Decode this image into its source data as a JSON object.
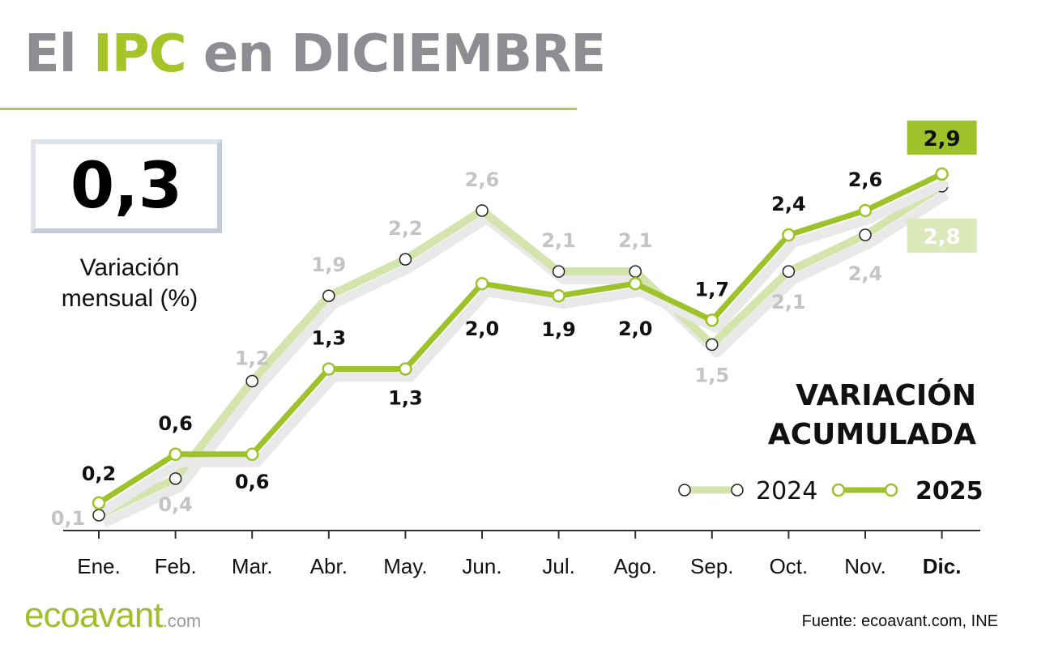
{
  "header": {
    "title_pre": "El ",
    "title_hl": "IPC",
    "title_post": " en DICIEMBRE"
  },
  "monthly": {
    "value": "0,3",
    "label_line1": "Variación",
    "label_line2": "mensual (%)"
  },
  "chart_data": {
    "type": "line",
    "title": "VARIACIÓN ACUMULADA",
    "categories": [
      "Ene.",
      "Feb.",
      "Mar.",
      "Abr.",
      "May.",
      "Jun.",
      "Jul.",
      "Ago.",
      "Sep.",
      "Oct.",
      "Nov.",
      "Dic."
    ],
    "series": [
      {
        "name": "2024",
        "values": [
          0.1,
          0.4,
          1.2,
          1.9,
          2.2,
          2.6,
          2.1,
          2.1,
          1.5,
          2.1,
          2.4,
          2.8
        ],
        "color": "#d5e4ad",
        "label_color": "#c4c4c4"
      },
      {
        "name": "2025",
        "values": [
          0.2,
          0.6,
          0.6,
          1.3,
          1.3,
          2.0,
          1.9,
          2.0,
          1.7,
          2.4,
          2.6,
          2.9
        ],
        "color": "#9dc22a",
        "label_color": "#111111"
      }
    ],
    "ylim": [
      0,
      3
    ],
    "grid": false,
    "legend": "bottom-right",
    "decimal_separator": ","
  },
  "footer": {
    "logo": "ecoavant",
    "logo_suffix": ".com",
    "source": "Fuente: ecoavant.com, INE"
  }
}
